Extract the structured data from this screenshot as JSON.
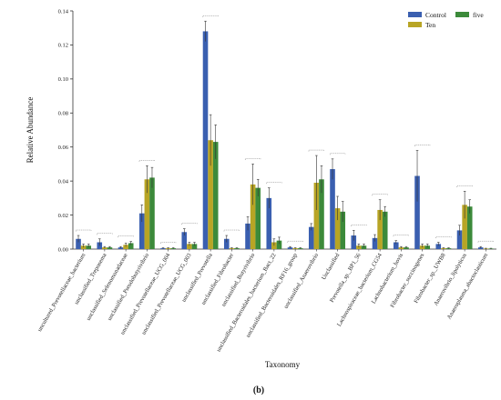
{
  "chart_data": {
    "type": "bar",
    "ylabel": "Relative Abundance",
    "xlabel": "Taxonomy",
    "panel_label": "(b)",
    "ylim": [
      0,
      0.14
    ],
    "yticks": [
      "0.00",
      "0.02",
      "0.04",
      "0.06",
      "0.08",
      "0.10",
      "0.12",
      "0.14"
    ],
    "legend_position": "top-right",
    "categories": [
      "uncultured_Prevotellaceae_bacterium",
      "unclassified_Treponema",
      "unclassified_Selenomonadaceae",
      "unclassified_Pseudobutyrivibrio",
      "unclassified_Prevotellaceae_UCG_004",
      "unclassified_Prevotellaceae_UCG_003",
      "unclassified_Prevotella",
      "unclassified_Fibrobacter",
      "unclassified_Butyrivibrio",
      "unclassified_Bacteroidales_bacterium_Bact_22",
      "unclassified_Bacteroidales_RF16_group",
      "unclassified_Anaerovibrio",
      "Unclassified",
      "Prevotella_sp._BP1_56",
      "Lachnospiraceae_bacterium_CG54",
      "Lachnobacterium_bovis",
      "Fibrobacter_succinogenes",
      "Fibrobacter_sp._UWB8",
      "Anaerovibrio_lipolyticus",
      "Anaeroplasma_abactoclasticum"
    ],
    "series": [
      {
        "name": "Control",
        "color": "#3a5fb0",
        "values": [
          0.006,
          0.004,
          0.001,
          0.021,
          0.0005,
          0.01,
          0.128,
          0.006,
          0.015,
          0.03,
          0.001,
          0.013,
          0.047,
          0.008,
          0.0065,
          0.004,
          0.043,
          0.003,
          0.011,
          0.001
        ],
        "errors": [
          0.002,
          0.002,
          0.0005,
          0.005,
          0.0003,
          0.002,
          0.006,
          0.002,
          0.004,
          0.006,
          0.0005,
          0.002,
          0.006,
          0.003,
          0.002,
          0.001,
          0.015,
          0.001,
          0.003,
          0.0005
        ]
      },
      {
        "name": "Ten",
        "color": "#b8a525",
        "values": [
          0.002,
          0.001,
          0.0025,
          0.041,
          0.0005,
          0.003,
          0.064,
          0.0005,
          0.038,
          0.004,
          0.0005,
          0.039,
          0.024,
          0.002,
          0.023,
          0.001,
          0.002,
          0.0005,
          0.026,
          0.0003
        ],
        "errors": [
          0.001,
          0.0005,
          0.001,
          0.008,
          0.0003,
          0.001,
          0.015,
          0.0003,
          0.012,
          0.002,
          0.0003,
          0.016,
          0.007,
          0.001,
          0.006,
          0.0005,
          0.001,
          0.0003,
          0.008,
          0.0002
        ]
      },
      {
        "name": "five",
        "color": "#3c8a3a",
        "values": [
          0.002,
          0.001,
          0.0035,
          0.042,
          0.0005,
          0.003,
          0.063,
          0.0005,
          0.036,
          0.005,
          0.0005,
          0.041,
          0.022,
          0.002,
          0.022,
          0.001,
          0.002,
          0.0005,
          0.025,
          0.0003
        ],
        "errors": [
          0.001,
          0.0005,
          0.001,
          0.006,
          0.0003,
          0.001,
          0.01,
          0.0003,
          0.005,
          0.002,
          0.0003,
          0.008,
          0.006,
          0.001,
          0.003,
          0.0005,
          0.001,
          0.0003,
          0.004,
          0.0002
        ]
      }
    ]
  }
}
